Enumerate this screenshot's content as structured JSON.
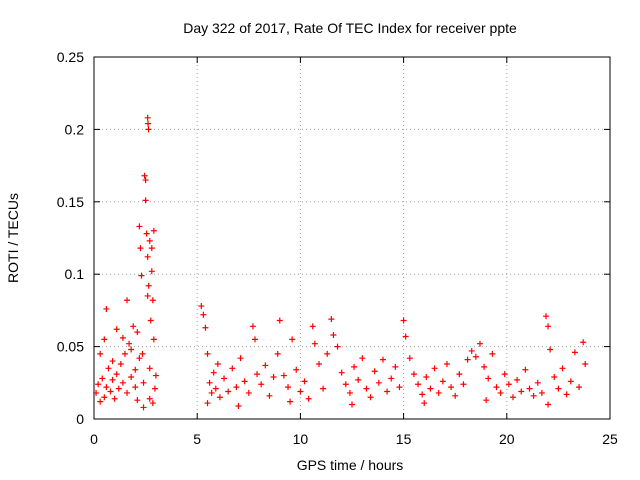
{
  "chart_data": {
    "type": "scatter",
    "title": "Day 322 of 2017, Rate Of TEC Index for receiver ppte",
    "xlabel": "GPS time / hours",
    "ylabel": "ROTI / TECUs",
    "xlim": [
      0,
      25
    ],
    "ylim": [
      0,
      0.25
    ],
    "x_ticks": [
      0,
      5,
      10,
      15,
      20,
      25
    ],
    "x_tick_labels": [
      "0",
      "5",
      "10",
      "15",
      "20",
      "25"
    ],
    "y_ticks": [
      0,
      0.05,
      0.1,
      0.15,
      0.2,
      0.25
    ],
    "y_tick_labels": [
      "0",
      "0.05",
      "0.1",
      "0.15",
      "0.2",
      "0.25"
    ],
    "grid": true,
    "marker": "plus",
    "color": "#ff0000",
    "series": [
      {
        "name": "ROTI",
        "points": [
          [
            0.1,
            0.018
          ],
          [
            0.2,
            0.024
          ],
          [
            0.3,
            0.012
          ],
          [
            0.4,
            0.028
          ],
          [
            0.5,
            0.015
          ],
          [
            0.6,
            0.022
          ],
          [
            0.7,
            0.035
          ],
          [
            0.8,
            0.019
          ],
          [
            0.9,
            0.027
          ],
          [
            1.0,
            0.014
          ],
          [
            1.1,
            0.031
          ],
          [
            1.2,
            0.021
          ],
          [
            1.3,
            0.038
          ],
          [
            1.4,
            0.025
          ],
          [
            1.5,
            0.045
          ],
          [
            1.6,
            0.018
          ],
          [
            1.7,
            0.052
          ],
          [
            1.8,
            0.029
          ],
          [
            1.9,
            0.064
          ],
          [
            2.0,
            0.022
          ],
          [
            0.3,
            0.045
          ],
          [
            0.5,
            0.055
          ],
          [
            0.6,
            0.076
          ],
          [
            0.9,
            0.04
          ],
          [
            1.1,
            0.062
          ],
          [
            1.4,
            0.056
          ],
          [
            1.6,
            0.082
          ],
          [
            1.8,
            0.048
          ],
          [
            2.0,
            0.034
          ],
          [
            2.1,
            0.06
          ],
          [
            2.1,
            0.013
          ],
          [
            2.2,
            0.042
          ],
          [
            2.2,
            0.133
          ],
          [
            2.25,
            0.118
          ],
          [
            2.3,
            0.099
          ],
          [
            2.35,
            0.045
          ],
          [
            2.4,
            0.025
          ],
          [
            2.45,
            0.168
          ],
          [
            2.5,
            0.165
          ],
          [
            2.5,
            0.151
          ],
          [
            2.55,
            0.128
          ],
          [
            2.6,
            0.112
          ],
          [
            2.6,
            0.085
          ],
          [
            2.6,
            0.208
          ],
          [
            2.62,
            0.204
          ],
          [
            2.64,
            0.2
          ],
          [
            2.65,
            0.092
          ],
          [
            2.7,
            0.123
          ],
          [
            2.7,
            0.035
          ],
          [
            2.75,
            0.068
          ],
          [
            2.8,
            0.118
          ],
          [
            2.8,
            0.102
          ],
          [
            2.85,
            0.082
          ],
          [
            2.85,
            0.011
          ],
          [
            2.9,
            0.13
          ],
          [
            2.9,
            0.055
          ],
          [
            2.95,
            0.021
          ],
          [
            3.0,
            0.03
          ],
          [
            2.4,
            0.008
          ],
          [
            2.7,
            0.014
          ],
          [
            5.2,
            0.078
          ],
          [
            5.3,
            0.072
          ],
          [
            5.4,
            0.063
          ],
          [
            5.5,
            0.045
          ],
          [
            5.6,
            0.025
          ],
          [
            5.7,
            0.018
          ],
          [
            5.8,
            0.032
          ],
          [
            5.9,
            0.021
          ],
          [
            6.0,
            0.038
          ],
          [
            6.1,
            0.015
          ],
          [
            6.3,
            0.028
          ],
          [
            6.5,
            0.019
          ],
          [
            6.7,
            0.035
          ],
          [
            6.9,
            0.022
          ],
          [
            7.1,
            0.042
          ],
          [
            7.3,
            0.026
          ],
          [
            7.5,
            0.018
          ],
          [
            7.7,
            0.064
          ],
          [
            7.8,
            0.055
          ],
          [
            7.9,
            0.031
          ],
          [
            8.1,
            0.024
          ],
          [
            8.3,
            0.037
          ],
          [
            8.5,
            0.016
          ],
          [
            8.7,
            0.029
          ],
          [
            8.9,
            0.045
          ],
          [
            9.0,
            0.068
          ],
          [
            9.2,
            0.03
          ],
          [
            9.4,
            0.022
          ],
          [
            9.6,
            0.055
          ],
          [
            9.8,
            0.034
          ],
          [
            10.0,
            0.019
          ],
          [
            10.2,
            0.026
          ],
          [
            10.4,
            0.014
          ],
          [
            10.6,
            0.064
          ],
          [
            10.7,
            0.052
          ],
          [
            10.9,
            0.038
          ],
          [
            11.1,
            0.021
          ],
          [
            11.3,
            0.045
          ],
          [
            11.5,
            0.069
          ],
          [
            11.6,
            0.058
          ],
          [
            11.8,
            0.05
          ],
          [
            12.0,
            0.032
          ],
          [
            12.2,
            0.024
          ],
          [
            12.4,
            0.018
          ],
          [
            12.6,
            0.036
          ],
          [
            12.8,
            0.027
          ],
          [
            13.0,
            0.042
          ],
          [
            13.2,
            0.021
          ],
          [
            13.4,
            0.015
          ],
          [
            13.6,
            0.033
          ],
          [
            13.8,
            0.025
          ],
          [
            14.0,
            0.041
          ],
          [
            14.2,
            0.019
          ],
          [
            14.4,
            0.028
          ],
          [
            14.6,
            0.036
          ],
          [
            14.8,
            0.022
          ],
          [
            15.0,
            0.068
          ],
          [
            15.1,
            0.057
          ],
          [
            15.3,
            0.042
          ],
          [
            15.5,
            0.031
          ],
          [
            15.7,
            0.024
          ],
          [
            15.9,
            0.017
          ],
          [
            16.1,
            0.029
          ],
          [
            16.3,
            0.021
          ],
          [
            16.5,
            0.035
          ],
          [
            16.7,
            0.018
          ],
          [
            16.9,
            0.026
          ],
          [
            17.1,
            0.038
          ],
          [
            17.3,
            0.022
          ],
          [
            17.5,
            0.016
          ],
          [
            17.7,
            0.031
          ],
          [
            17.9,
            0.024
          ],
          [
            18.1,
            0.041
          ],
          [
            18.3,
            0.047
          ],
          [
            18.5,
            0.043
          ],
          [
            18.7,
            0.052
          ],
          [
            18.9,
            0.036
          ],
          [
            19.1,
            0.028
          ],
          [
            19.3,
            0.045
          ],
          [
            19.5,
            0.022
          ],
          [
            19.7,
            0.018
          ],
          [
            19.9,
            0.031
          ],
          [
            20.1,
            0.024
          ],
          [
            20.3,
            0.015
          ],
          [
            20.5,
            0.027
          ],
          [
            20.7,
            0.019
          ],
          [
            20.9,
            0.034
          ],
          [
            21.1,
            0.021
          ],
          [
            21.3,
            0.016
          ],
          [
            21.5,
            0.025
          ],
          [
            21.7,
            0.018
          ],
          [
            21.9,
            0.071
          ],
          [
            22.0,
            0.064
          ],
          [
            22.1,
            0.048
          ],
          [
            22.3,
            0.029
          ],
          [
            22.5,
            0.021
          ],
          [
            22.7,
            0.035
          ],
          [
            22.9,
            0.017
          ],
          [
            23.1,
            0.026
          ],
          [
            23.3,
            0.046
          ],
          [
            23.5,
            0.022
          ],
          [
            23.7,
            0.053
          ],
          [
            23.8,
            0.038
          ],
          [
            5.5,
            0.011
          ],
          [
            7.0,
            0.009
          ],
          [
            9.5,
            0.012
          ],
          [
            12.5,
            0.01
          ],
          [
            16.0,
            0.011
          ],
          [
            19.0,
            0.013
          ],
          [
            22.0,
            0.01
          ]
        ]
      }
    ]
  }
}
